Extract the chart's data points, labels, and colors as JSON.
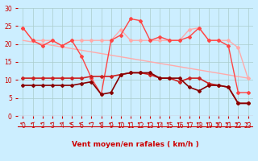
{
  "xlim": [
    -0.5,
    23.5
  ],
  "ylim": [
    0,
    30
  ],
  "yticks": [
    0,
    5,
    10,
    15,
    20,
    25,
    30
  ],
  "xticks": [
    0,
    1,
    2,
    3,
    4,
    5,
    6,
    7,
    8,
    9,
    10,
    11,
    12,
    13,
    14,
    15,
    16,
    17,
    18,
    19,
    20,
    21,
    22,
    23
  ],
  "xlabel": "Vent moyen/en rafales ( km/h )",
  "background_color": "#cceeff",
  "grid_color": "#aacccc",
  "series": [
    {
      "label": "trend_line",
      "color": "#ffaaaa",
      "linewidth": 1.0,
      "marker": null,
      "markersize": 0,
      "x": [
        0,
        23
      ],
      "y": [
        21.0,
        10.5
      ]
    },
    {
      "label": "rafales_light",
      "color": "#ffaaaa",
      "linewidth": 1.0,
      "marker": "D",
      "markersize": 2.0,
      "x": [
        0,
        1,
        2,
        3,
        4,
        5,
        6,
        7,
        8,
        9,
        10,
        11,
        12,
        13,
        14,
        15,
        16,
        17,
        18,
        19,
        20,
        21,
        22,
        23
      ],
      "y": [
        24.5,
        21,
        21,
        21,
        19.5,
        21,
        21,
        21,
        21,
        21,
        24,
        21,
        21,
        21,
        21,
        21,
        21,
        24,
        24.5,
        21,
        21,
        21,
        19,
        10.5
      ]
    },
    {
      "label": "rafales_dark",
      "color": "#ff4444",
      "linewidth": 1.0,
      "marker": "D",
      "markersize": 2.0,
      "x": [
        0,
        1,
        2,
        3,
        4,
        5,
        6,
        7,
        8,
        9,
        10,
        11,
        12,
        13,
        14,
        15,
        16,
        17,
        18,
        19,
        20,
        21,
        22,
        23
      ],
      "y": [
        24.5,
        21,
        19.5,
        21,
        19.5,
        21,
        16.5,
        10.5,
        6,
        21,
        22.5,
        27,
        26.5,
        21,
        22,
        21,
        21,
        22,
        24.5,
        21,
        21,
        19.5,
        6.5,
        6.5
      ]
    },
    {
      "label": "vent_moyen_light",
      "color": "#cc2222",
      "linewidth": 1.2,
      "marker": "D",
      "markersize": 2.0,
      "x": [
        0,
        1,
        2,
        3,
        4,
        5,
        6,
        7,
        8,
        9,
        10,
        11,
        12,
        13,
        14,
        15,
        16,
        17,
        18,
        19,
        20,
        21,
        22,
        23
      ],
      "y": [
        10.5,
        10.5,
        10.5,
        10.5,
        10.5,
        10.5,
        10.5,
        11,
        11,
        11,
        11.5,
        12,
        12,
        11.5,
        10.5,
        10.5,
        9.5,
        10.5,
        10.5,
        9,
        8.5,
        8,
        3.5,
        3.5
      ]
    },
    {
      "label": "vent_moyen_dark",
      "color": "#880000",
      "linewidth": 1.2,
      "marker": "D",
      "markersize": 2.0,
      "x": [
        0,
        1,
        2,
        3,
        4,
        5,
        6,
        7,
        8,
        9,
        10,
        11,
        12,
        13,
        14,
        15,
        16,
        17,
        18,
        19,
        20,
        21,
        22,
        23
      ],
      "y": [
        8.5,
        8.5,
        8.5,
        8.5,
        8.5,
        8.5,
        9,
        9.5,
        6,
        6.5,
        11.5,
        12,
        12,
        12,
        10.5,
        10.5,
        10.5,
        8,
        7,
        8.5,
        8.5,
        8,
        3.5,
        3.5
      ]
    }
  ],
  "arrow_symbols": "←",
  "arrow_color": "#cc0000",
  "xlabel_color": "#cc0000",
  "tick_color": "#cc0000",
  "tick_fontsize": 5.5,
  "xlabel_fontsize": 6.5,
  "xlabel_fontweight": "bold"
}
